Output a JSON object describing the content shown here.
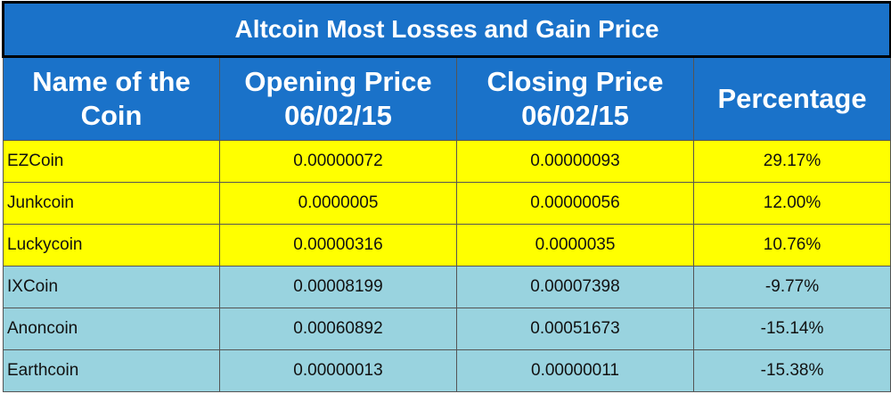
{
  "table": {
    "title": "Altcoin Most Losses and Gain Price",
    "headers": [
      "Name of the Coin",
      "Opening Price 06/02/15",
      "Closing Price 06/02/15",
      "Percentage"
    ],
    "rows": [
      [
        "EZCoin",
        "0.00000072",
        "0.00000093",
        "29.17%"
      ],
      [
        "Junkcoin",
        "0.0000005",
        "0.00000056",
        "12.00%"
      ],
      [
        "Luckycoin",
        "0.00000316",
        "0.0000035",
        "10.76%"
      ],
      [
        "IXCoin",
        "0.00008199",
        "0.00007398",
        "-9.77%"
      ],
      [
        "Anoncoin",
        "0.00060892",
        "0.00051673",
        "-15.14%"
      ],
      [
        "Earthcoin",
        "0.00000013",
        "0.00000011",
        "-15.38%"
      ]
    ]
  }
}
